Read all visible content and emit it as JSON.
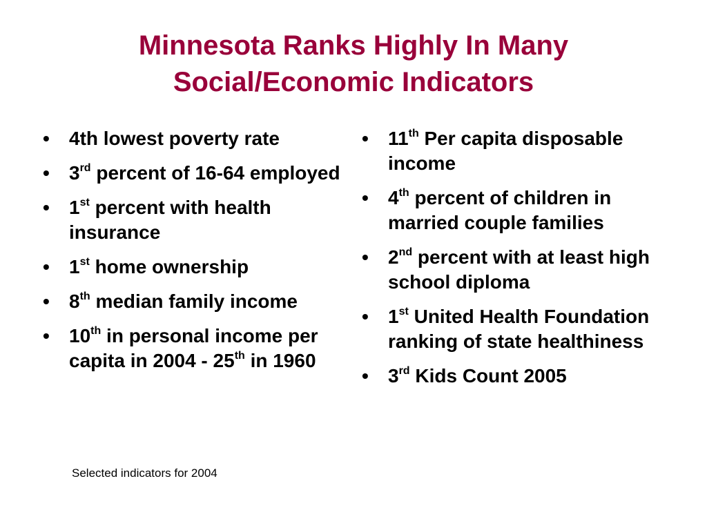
{
  "title": {
    "line1": "Minnesota Ranks Highly In Many",
    "line2": "Social/Economic Indicators"
  },
  "bullet_glyph": "•",
  "left": [
    {
      "parts": [
        {
          "t": "4th lowest poverty rate"
        }
      ]
    },
    {
      "parts": [
        {
          "t": "3"
        },
        {
          "sup": "rd"
        },
        {
          "t": " percent of 16-64 employed"
        }
      ]
    },
    {
      "parts": [
        {
          "t": "1"
        },
        {
          "sup": "st"
        },
        {
          "t": " percent with health insurance"
        }
      ]
    },
    {
      "parts": [
        {
          "t": "1"
        },
        {
          "sup": "st"
        },
        {
          "t": " home ownership"
        }
      ]
    },
    {
      "parts": [
        {
          "t": "8"
        },
        {
          "sup": "th"
        },
        {
          "t": " median family income"
        }
      ]
    },
    {
      "parts": [
        {
          "t": "10"
        },
        {
          "sup": "th"
        },
        {
          "t": " in personal income per capita in 2004 - 25"
        },
        {
          "sup": "th"
        },
        {
          "t": " in 1960"
        }
      ]
    }
  ],
  "right": [
    {
      "parts": [
        {
          "t": "11"
        },
        {
          "sup": "th"
        },
        {
          "t": " Per capita disposable income"
        }
      ]
    },
    {
      "parts": [
        {
          "t": "4"
        },
        {
          "sup": "th"
        },
        {
          "t": " percent of children in married couple families"
        }
      ]
    },
    {
      "parts": [
        {
          "t": "2"
        },
        {
          "sup": "nd"
        },
        {
          "t": " percent with at least high school diploma"
        }
      ]
    },
    {
      "parts": [
        {
          "t": "1"
        },
        {
          "sup": "st"
        },
        {
          "t": " United Health Foundation ranking of state healthiness"
        }
      ]
    },
    {
      "parts": [
        {
          "t": "3"
        },
        {
          "sup": "rd"
        },
        {
          "t": " Kids Count 2005"
        }
      ]
    }
  ],
  "footnote": "Selected indicators for 2004",
  "colors": {
    "title": "#99003a",
    "text": "#000000",
    "background": "#ffffff"
  }
}
